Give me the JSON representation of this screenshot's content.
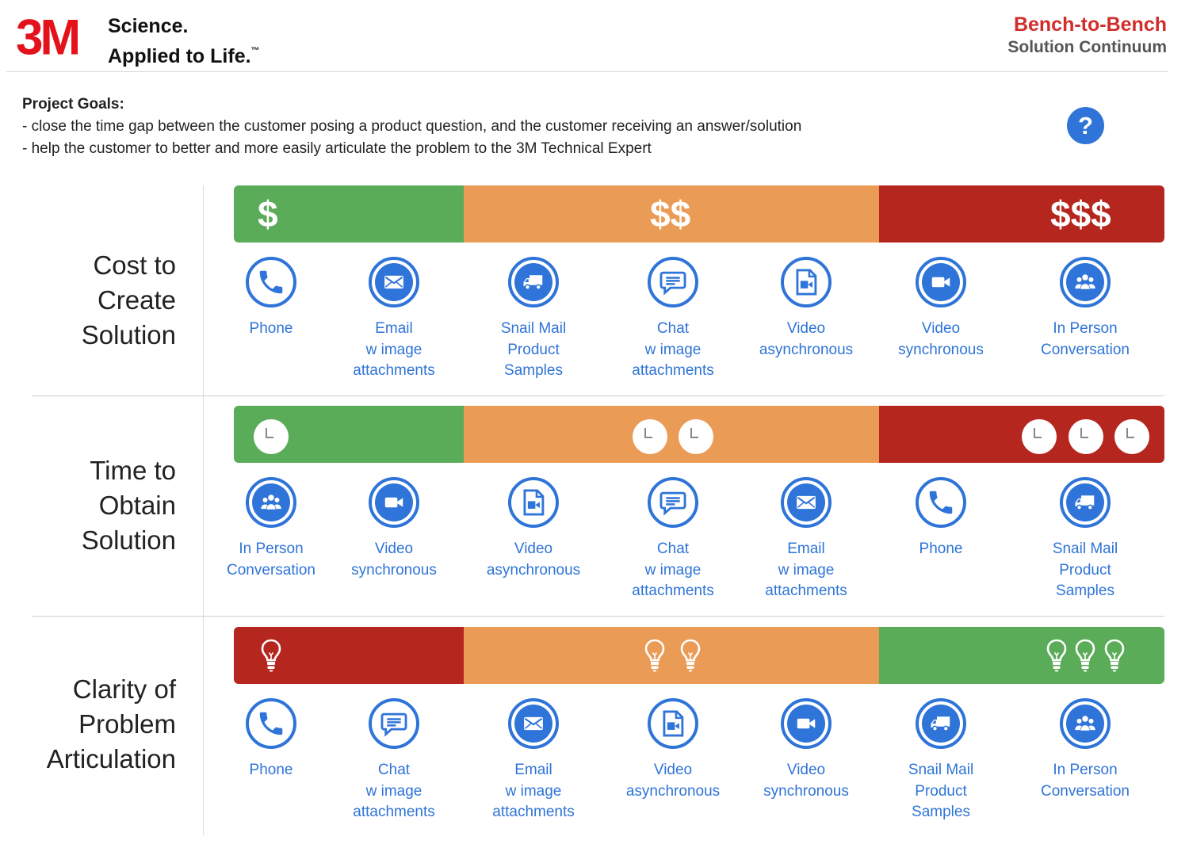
{
  "header": {
    "logo": "3M",
    "tagline_line1": "Science.",
    "tagline_line2": "Applied to Life.",
    "tagline_tm": "™",
    "brand_title": "Bench-to-Bench",
    "brand_subtitle": "Solution Continuum"
  },
  "goals": {
    "title": "Project Goals:",
    "items": [
      "- close the time gap between the customer posing a product question, and the customer receiving an answer/solution",
      "- help the customer to better and more easily articulate the problem to the 3M Technical Expert"
    ],
    "help_label": "?"
  },
  "colors": {
    "green": "#5aac58",
    "orange": "#ea9b55",
    "red": "#b5261e",
    "accent_blue": "#2f74d8"
  },
  "rows": [
    {
      "label_lines": [
        "Cost to",
        "Create",
        "Solution"
      ],
      "indicator": "dollar",
      "segment_colors": [
        "green",
        "orange",
        "red"
      ],
      "segment_markers": [
        "$",
        "$$",
        "$$$"
      ],
      "items": [
        {
          "icon": "phone-icon",
          "lines": [
            "Phone"
          ]
        },
        {
          "icon": "email-icon",
          "lines": [
            "Email",
            "w image",
            "attachments"
          ]
        },
        {
          "icon": "truck-icon",
          "lines": [
            "Snail Mail",
            "Product",
            "Samples"
          ]
        },
        {
          "icon": "chat-icon",
          "lines": [
            "Chat",
            "w image",
            "attachments"
          ]
        },
        {
          "icon": "video-file-icon",
          "lines": [
            "Video",
            "asynchronous"
          ]
        },
        {
          "icon": "video-camera-icon",
          "lines": [
            "Video",
            "synchronous"
          ]
        },
        {
          "icon": "people-icon",
          "lines": [
            "In Person",
            "Conversation"
          ]
        }
      ]
    },
    {
      "label_lines": [
        "Time to",
        "Obtain",
        "Solution"
      ],
      "indicator": "clock",
      "segment_colors": [
        "green",
        "orange",
        "red"
      ],
      "segment_counts": [
        1,
        2,
        3
      ],
      "items": [
        {
          "icon": "people-icon",
          "lines": [
            "In Person",
            "Conversation"
          ]
        },
        {
          "icon": "video-camera-icon",
          "lines": [
            "Video",
            "synchronous"
          ]
        },
        {
          "icon": "video-file-icon",
          "lines": [
            "Video",
            "asynchronous"
          ]
        },
        {
          "icon": "chat-icon",
          "lines": [
            "Chat",
            "w image",
            "attachments"
          ]
        },
        {
          "icon": "email-icon",
          "lines": [
            "Email",
            "w image",
            "attachments"
          ]
        },
        {
          "icon": "phone-icon",
          "lines": [
            "Phone"
          ]
        },
        {
          "icon": "truck-icon",
          "lines": [
            "Snail Mail",
            "Product",
            "Samples"
          ]
        }
      ]
    },
    {
      "label_lines": [
        "Clarity of",
        "Problem",
        "Articulation"
      ],
      "indicator": "lightbulb",
      "segment_colors": [
        "red",
        "orange",
        "green"
      ],
      "segment_counts": [
        1,
        2,
        3
      ],
      "items": [
        {
          "icon": "phone-icon",
          "lines": [
            "Phone"
          ]
        },
        {
          "icon": "chat-icon",
          "lines": [
            "Chat",
            "w image",
            "attachments"
          ]
        },
        {
          "icon": "email-icon",
          "lines": [
            "Email",
            "w image",
            "attachments"
          ]
        },
        {
          "icon": "video-file-icon",
          "lines": [
            "Video",
            "asynchronous"
          ]
        },
        {
          "icon": "video-camera-icon",
          "lines": [
            "Video",
            "synchronous"
          ]
        },
        {
          "icon": "truck-icon",
          "lines": [
            "Snail Mail",
            "Product",
            "Samples"
          ]
        },
        {
          "icon": "people-icon",
          "lines": [
            "In Person",
            "Conversation"
          ]
        }
      ]
    }
  ]
}
